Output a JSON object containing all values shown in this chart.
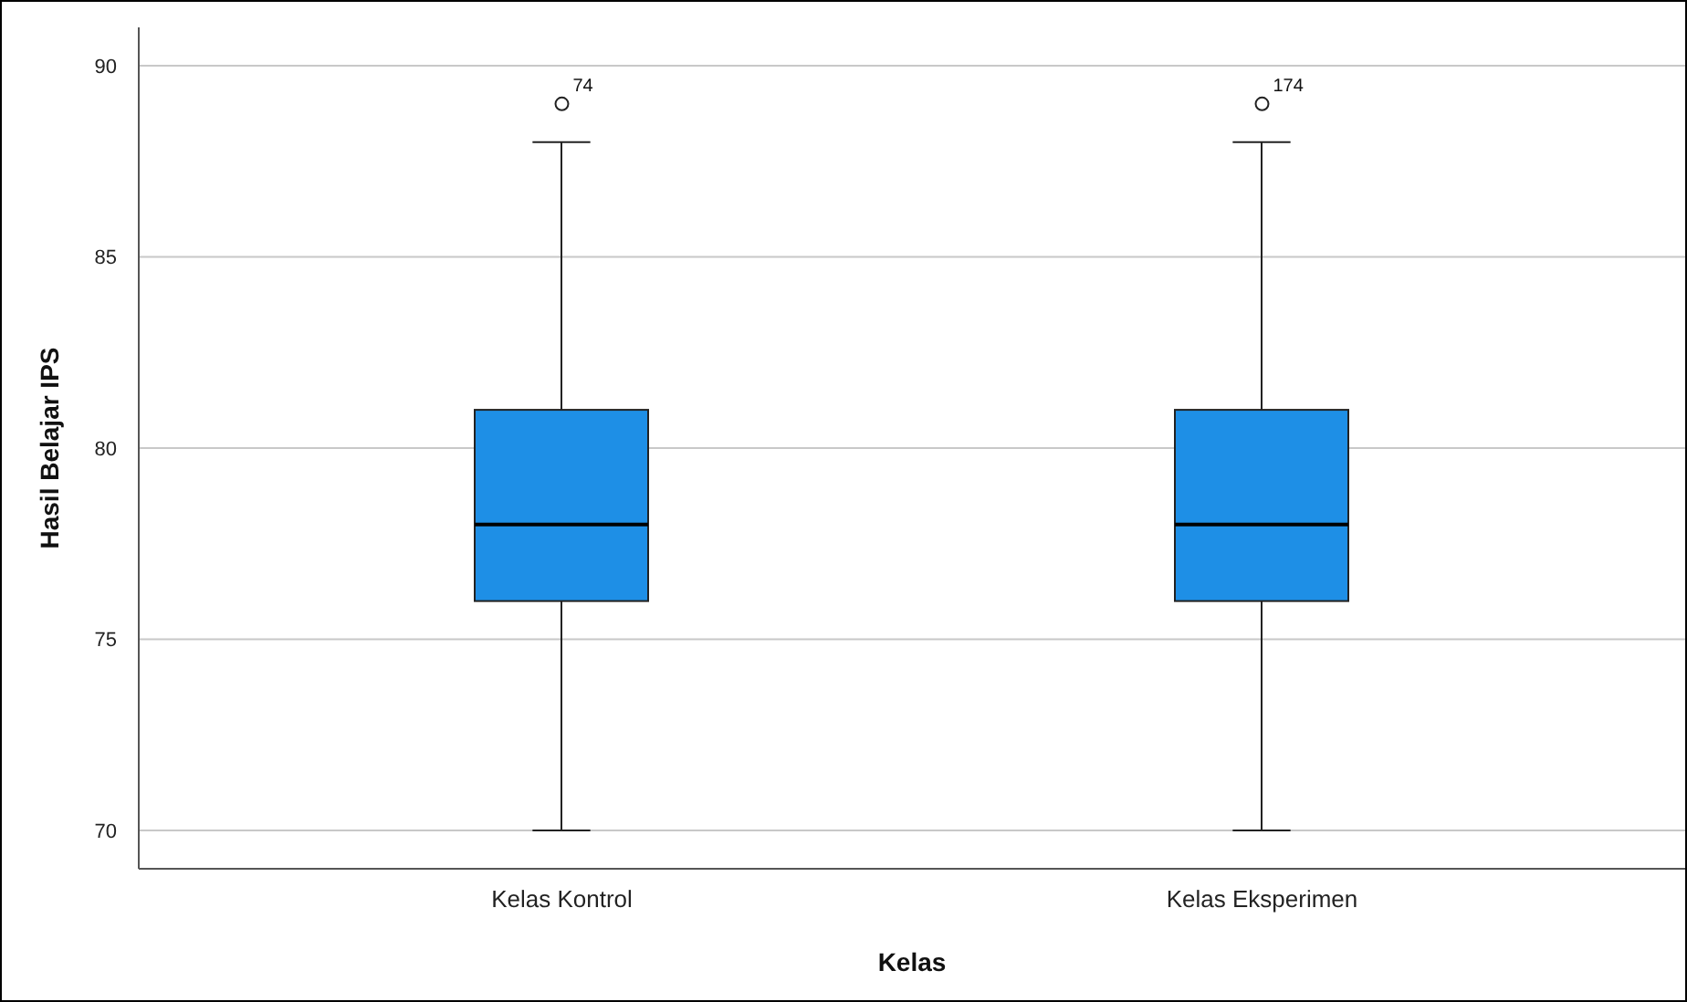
{
  "chart_data": {
    "type": "box",
    "xlabel": "Kelas",
    "ylabel": "Hasil Belajar IPS",
    "categories": [
      "Kelas Kontrol",
      "Kelas Eksperimen"
    ],
    "color": "#1e8fe6",
    "boxes": [
      {
        "low": 70,
        "q1": 76,
        "median": 78,
        "q3": 81,
        "high": 88,
        "outliers": [
          89
        ]
      },
      {
        "low": 70,
        "q1": 76,
        "median": 78,
        "q3": 81,
        "high": 88,
        "outliers": [
          89
        ]
      }
    ],
    "annotations": [
      "74",
      "174"
    ],
    "ylim": [
      69,
      91
    ],
    "yticks": [
      70,
      75,
      80,
      85,
      90
    ],
    "grid": "y",
    "legend": false
  }
}
